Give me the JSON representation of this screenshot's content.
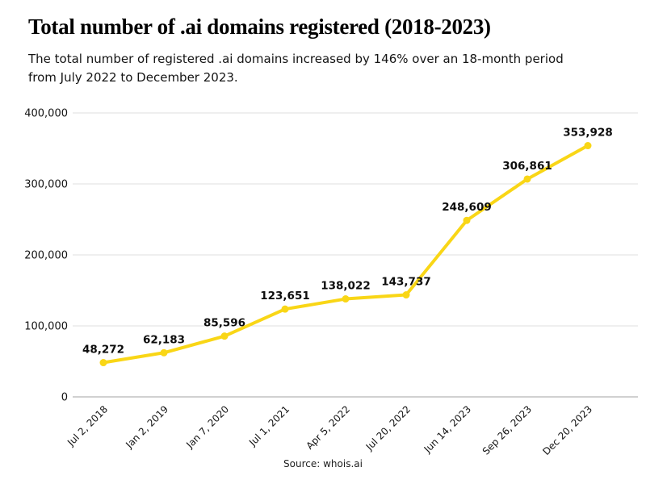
{
  "header": {
    "title": "Total number of .ai domains registered (2018-2023)",
    "subtitle": "The total number of registered .ai domains increased by 146% over an 18-month period from July 2022 to December 2023."
  },
  "footer": {
    "source": "Source: whois.ai"
  },
  "colors": {
    "line": "#F9D616",
    "marker": "#F9D616",
    "grid": "#DFDFDF",
    "axis": "#C2C2C2",
    "text": "#141414"
  },
  "chart_data": {
    "type": "line",
    "title": "Total number of .ai domains registered (2018-2023)",
    "categories": [
      "Jul 2, 2018",
      "Jan 2, 2019",
      "Jan 7, 2020",
      "Jul 1, 2021",
      "Apr 5, 2022",
      "Jul 20, 2022",
      "Jun 14, 2023",
      "Sep 26, 2023",
      "Dec 20, 2023"
    ],
    "values": [
      48272,
      62183,
      85596,
      123651,
      138022,
      143737,
      248609,
      306861,
      353928
    ],
    "point_labels": [
      "48,272",
      "62,183",
      "85,596",
      "123,651",
      "138,022",
      "143,737",
      "248,609",
      "306,861",
      "353,928"
    ],
    "yticks": [
      0,
      100000,
      200000,
      300000,
      400000
    ],
    "ytick_labels": [
      "0",
      "100,000",
      "200,000",
      "300,000",
      "400,000"
    ],
    "ylim": [
      0,
      400000
    ],
    "xlabel": "",
    "ylabel": "",
    "grid": true,
    "legend": "none"
  }
}
